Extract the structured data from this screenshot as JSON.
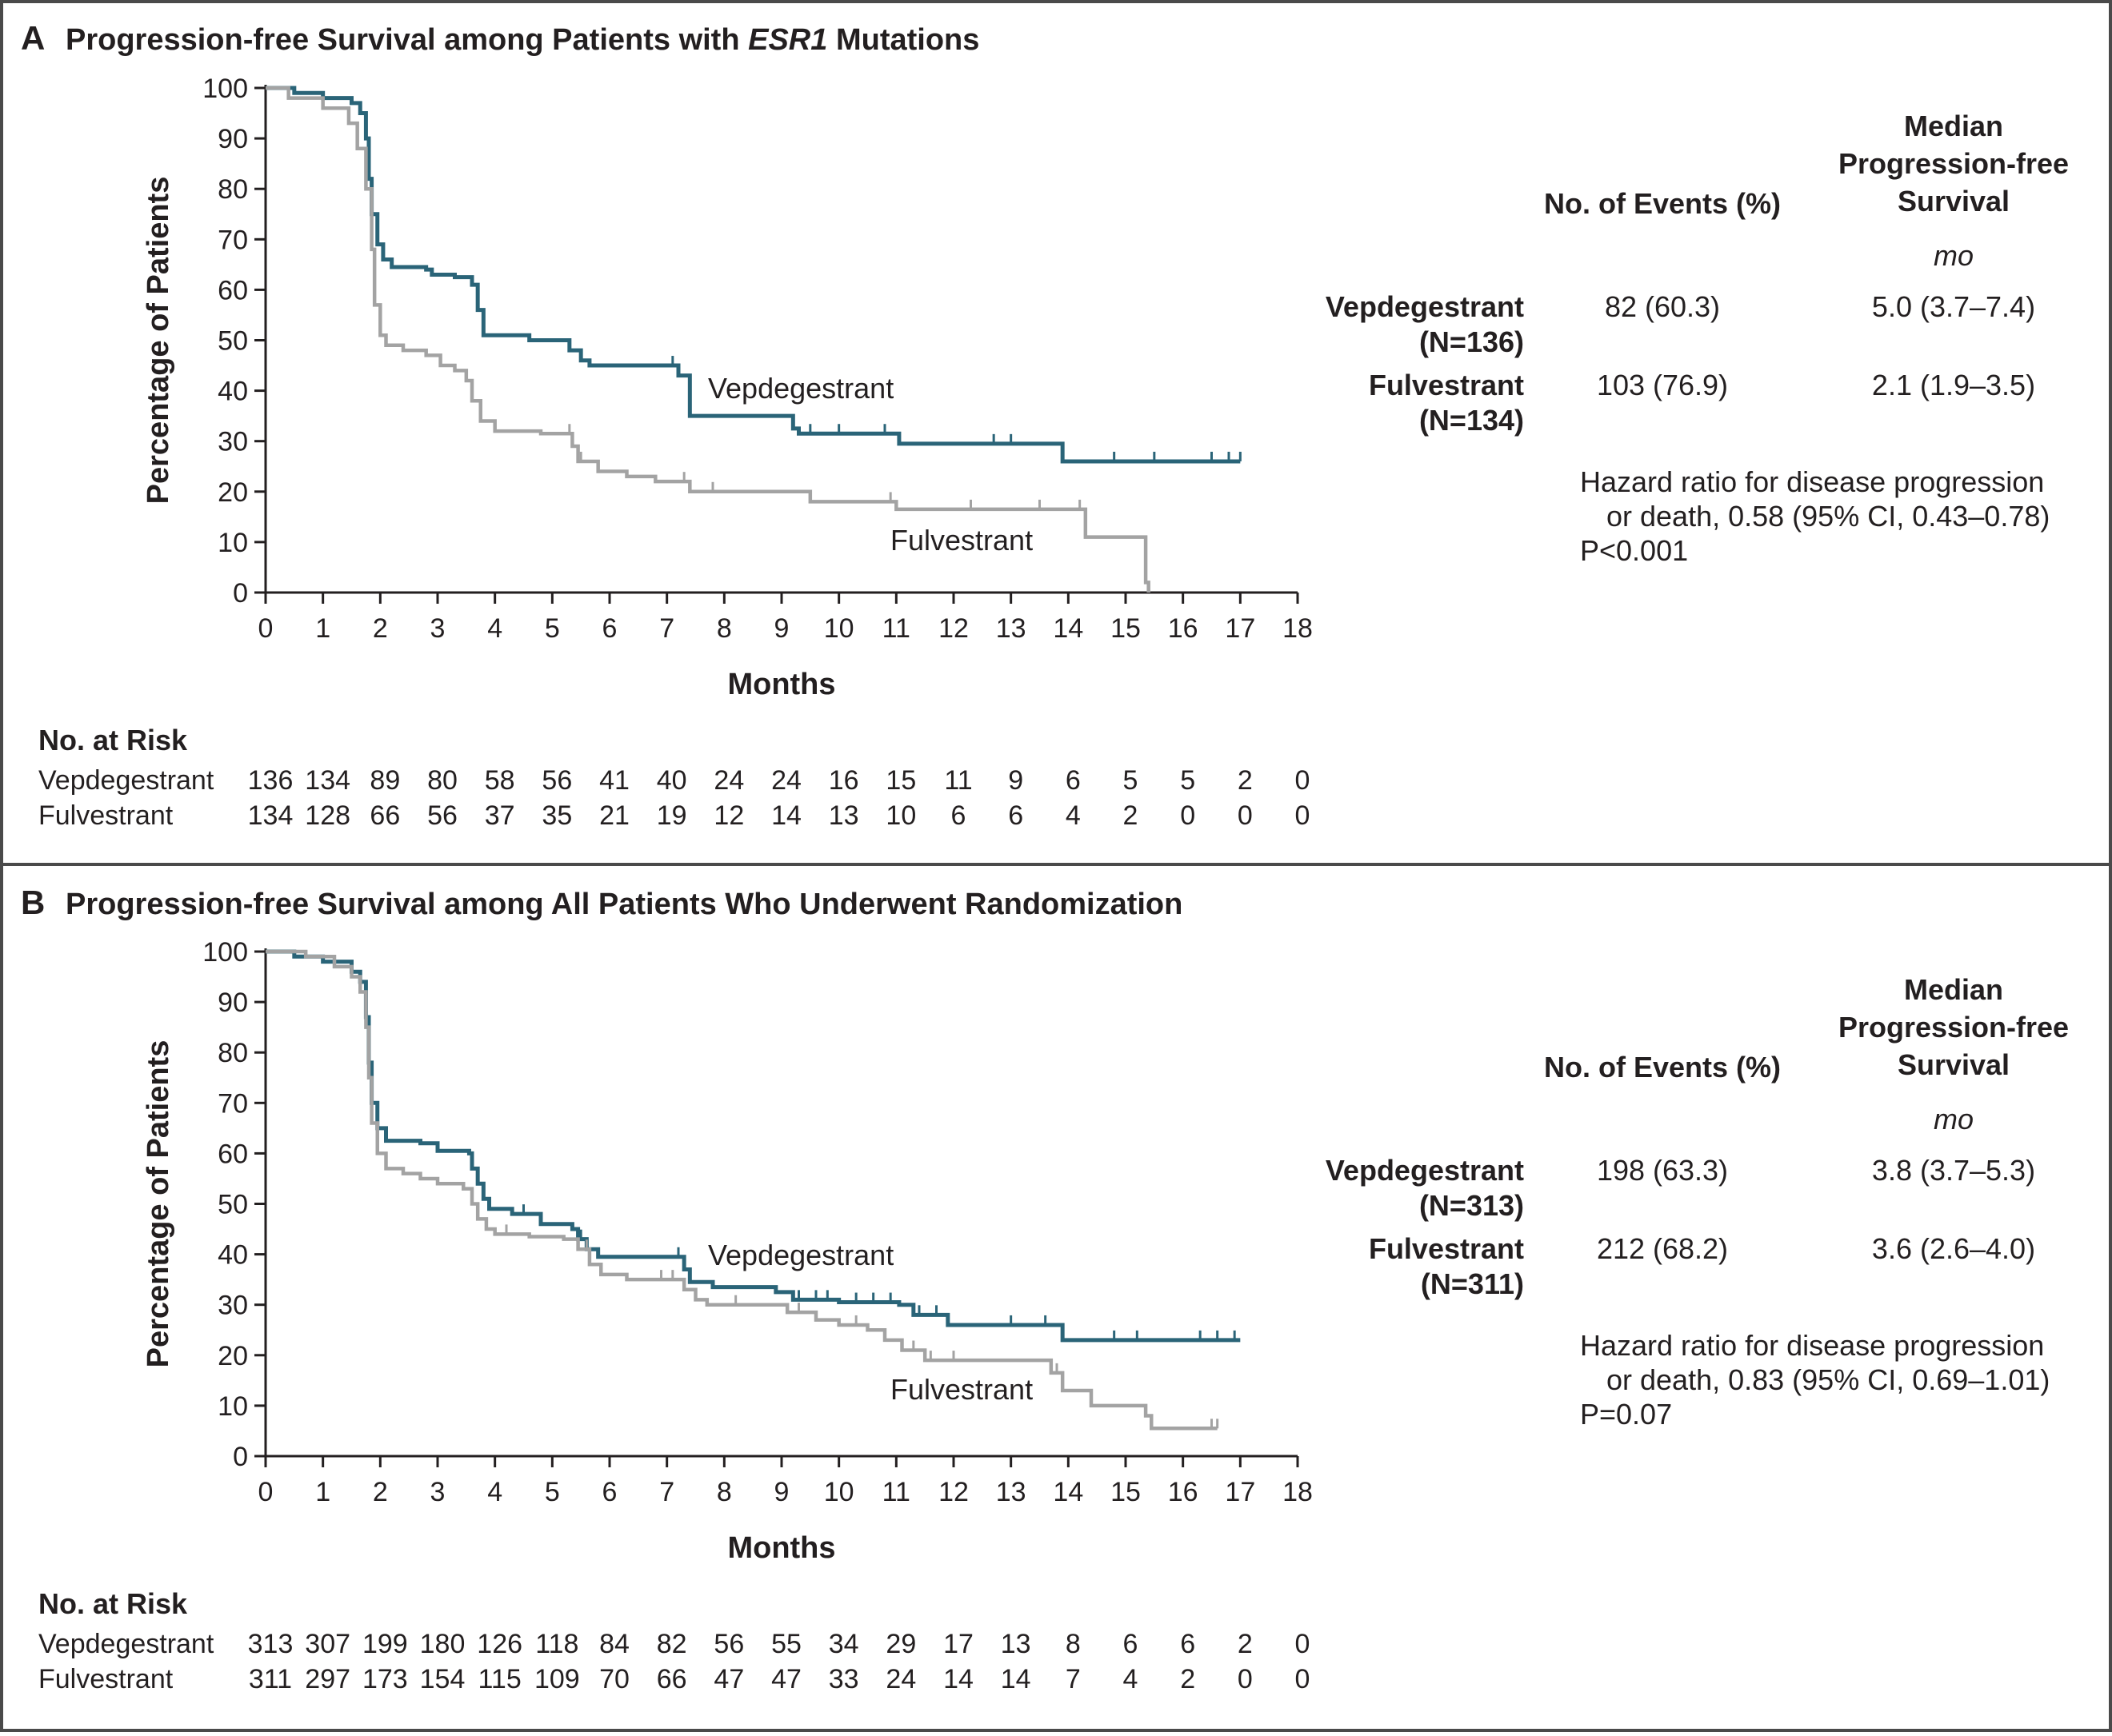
{
  "colors": {
    "vepdegestrant": "#2a6478",
    "fulvestrant": "#a3a3a3",
    "text": "#231f20",
    "frame": "#4a4a4a"
  },
  "chart_data": [
    {
      "type": "line",
      "panel_letter": "A",
      "title_prefix": "Progression-free Survival among Patients with ",
      "title_gene": "ESR1",
      "title_suffix": " Mutations",
      "xlabel": "Months",
      "ylabel": "Percentage of Patients",
      "xlim": [
        0,
        18
      ],
      "ylim": [
        0,
        100
      ],
      "xticks": [
        "0",
        "1",
        "2",
        "3",
        "4",
        "5",
        "6",
        "7",
        "8",
        "9",
        "10",
        "11",
        "12",
        "13",
        "14",
        "15",
        "16",
        "17",
        "18"
      ],
      "yticks": [
        "0",
        "10",
        "20",
        "30",
        "40",
        "50",
        "60",
        "70",
        "80",
        "90",
        "100"
      ],
      "series": [
        {
          "name": "Vepdegestrant",
          "color": "#2a6478",
          "points": [
            [
              0,
              100
            ],
            [
              0.5,
              99
            ],
            [
              1,
              98
            ],
            [
              1.5,
              97
            ],
            [
              1.65,
              95
            ],
            [
              1.75,
              90
            ],
            [
              1.8,
              82
            ],
            [
              1.85,
              75
            ],
            [
              1.95,
              69
            ],
            [
              2.05,
              66
            ],
            [
              2.2,
              64.5
            ],
            [
              2.8,
              64
            ],
            [
              2.9,
              63
            ],
            [
              3.3,
              62.5
            ],
            [
              3.6,
              61
            ],
            [
              3.7,
              56
            ],
            [
              3.8,
              51
            ],
            [
              4.2,
              51
            ],
            [
              4.6,
              50
            ],
            [
              5.3,
              48
            ],
            [
              5.5,
              46
            ],
            [
              5.65,
              45
            ],
            [
              6.2,
              45
            ],
            [
              7.2,
              43
            ],
            [
              7.4,
              35
            ],
            [
              8.4,
              35
            ],
            [
              9.2,
              32.5
            ],
            [
              9.3,
              31.5
            ],
            [
              10.5,
              31.5
            ],
            [
              11.05,
              29.5
            ],
            [
              13.9,
              26
            ],
            [
              17,
              26
            ]
          ],
          "censor": [
            7.1,
            7.2,
            9.2,
            9.5,
            10,
            10.8,
            12.7,
            13,
            14.8,
            15.5,
            16.5,
            16.8,
            17
          ]
        },
        {
          "name": "Fulvestrant",
          "color": "#a3a3a3",
          "points": [
            [
              0,
              100
            ],
            [
              0.4,
              98
            ],
            [
              1,
              96
            ],
            [
              1.45,
              93
            ],
            [
              1.6,
              88
            ],
            [
              1.75,
              80
            ],
            [
              1.85,
              68
            ],
            [
              1.9,
              57
            ],
            [
              2,
              51
            ],
            [
              2.1,
              49
            ],
            [
              2.4,
              48
            ],
            [
              2.8,
              47
            ],
            [
              3.05,
              45
            ],
            [
              3.3,
              44
            ],
            [
              3.5,
              42
            ],
            [
              3.6,
              38
            ],
            [
              3.75,
              34
            ],
            [
              4,
              32
            ],
            [
              4.8,
              31.5
            ],
            [
              5.35,
              29
            ],
            [
              5.45,
              26
            ],
            [
              5.8,
              24
            ],
            [
              6.3,
              23
            ],
            [
              6.8,
              22
            ],
            [
              7.4,
              20
            ],
            [
              9.4,
              20
            ],
            [
              9.5,
              18
            ],
            [
              10.9,
              18
            ],
            [
              11,
              16.5
            ],
            [
              14.2,
              16.5
            ],
            [
              14.3,
              11
            ],
            [
              15.3,
              11
            ],
            [
              15.35,
              2
            ],
            [
              15.4,
              0
            ]
          ],
          "censor": [
            5.3,
            5.5,
            7.3,
            7.8,
            10.9,
            12.3,
            13.5,
            14.2
          ]
        }
      ],
      "curve_labels": {
        "vepdegestrant": "Vepdegestrant",
        "fulvestrant": "Fulvestrant"
      },
      "at_risk_title": "No. at Risk",
      "at_risk": [
        {
          "label": "Vepdegestrant",
          "values": [
            "136",
            "134",
            "89",
            "80",
            "58",
            "56",
            "41",
            "40",
            "24",
            "24",
            "16",
            "15",
            "11",
            "9",
            "6",
            "5",
            "5",
            "2",
            "0"
          ]
        },
        {
          "label": "Fulvestrant",
          "values": [
            "134",
            "128",
            "66",
            "56",
            "37",
            "35",
            "21",
            "19",
            "12",
            "14",
            "13",
            "10",
            "6",
            "6",
            "4",
            "2",
            "0",
            "0",
            "0"
          ]
        }
      ],
      "table": {
        "col_events": "No. of Events (%)",
        "col_median": [
          "Median",
          "Progression-free",
          "Survival"
        ],
        "unit": "mo",
        "rows": [
          {
            "name": "Vepdegestrant",
            "n": "(N=136)",
            "events": "82 (60.3)",
            "median": "5.0 (3.7–7.4)"
          },
          {
            "name": "Fulvestrant",
            "n": "(N=134)",
            "events": "103 (76.9)",
            "median": "2.1 (1.9–3.5)"
          }
        ],
        "hr_lines": [
          "Hazard ratio for disease progression",
          "or death, 0.58 (95% CI, 0.43–0.78)",
          "P<0.001"
        ]
      }
    },
    {
      "type": "line",
      "panel_letter": "B",
      "title_prefix": "Progression-free Survival among All Patients Who Underwent Randomization",
      "title_gene": "",
      "title_suffix": "",
      "xlabel": "Months",
      "ylabel": "Percentage of Patients",
      "xlim": [
        0,
        18
      ],
      "ylim": [
        0,
        100
      ],
      "xticks": [
        "0",
        "1",
        "2",
        "3",
        "4",
        "5",
        "6",
        "7",
        "8",
        "9",
        "10",
        "11",
        "12",
        "13",
        "14",
        "15",
        "16",
        "17",
        "18"
      ],
      "yticks": [
        "0",
        "10",
        "20",
        "30",
        "40",
        "50",
        "60",
        "70",
        "80",
        "90",
        "100"
      ],
      "series": [
        {
          "name": "Vepdegestrant",
          "color": "#2a6478",
          "points": [
            [
              0,
              100
            ],
            [
              0.5,
              99
            ],
            [
              1,
              98
            ],
            [
              1.5,
              96
            ],
            [
              1.65,
              94
            ],
            [
              1.75,
              87
            ],
            [
              1.8,
              78
            ],
            [
              1.85,
              70
            ],
            [
              1.95,
              65
            ],
            [
              2.1,
              62.5
            ],
            [
              2.7,
              62
            ],
            [
              3,
              60.5
            ],
            [
              3.55,
              60
            ],
            [
              3.6,
              57
            ],
            [
              3.7,
              54
            ],
            [
              3.8,
              51
            ],
            [
              3.9,
              49
            ],
            [
              4.3,
              48
            ],
            [
              4.8,
              46
            ],
            [
              5.35,
              45
            ],
            [
              5.45,
              43
            ],
            [
              5.6,
              41
            ],
            [
              5.8,
              39.5
            ],
            [
              7.2,
              39.5
            ],
            [
              7.3,
              37
            ],
            [
              7.4,
              34.5
            ],
            [
              7.8,
              33.5
            ],
            [
              8.9,
              32.5
            ],
            [
              9.2,
              31
            ],
            [
              10,
              30.5
            ],
            [
              11.05,
              30
            ],
            [
              11.3,
              28
            ],
            [
              11.9,
              26
            ],
            [
              13.9,
              23
            ],
            [
              17,
              23
            ]
          ],
          "censor": [
            4.5,
            5.5,
            7.2,
            9.3,
            9.6,
            9.8,
            10.3,
            10.6,
            10.9,
            11.4,
            11.7,
            13.0,
            13.6,
            14.8,
            15.2,
            16.3,
            16.6,
            16.9
          ]
        },
        {
          "name": "Fulvestrant",
          "color": "#a3a3a3",
          "points": [
            [
              0,
              100
            ],
            [
              0.7,
              99
            ],
            [
              1.2,
              97
            ],
            [
              1.5,
              95
            ],
            [
              1.65,
              92
            ],
            [
              1.75,
              85
            ],
            [
              1.8,
              75
            ],
            [
              1.85,
              66
            ],
            [
              1.95,
              60
            ],
            [
              2.1,
              57
            ],
            [
              2.4,
              56
            ],
            [
              2.7,
              55
            ],
            [
              3,
              54
            ],
            [
              3.45,
              53
            ],
            [
              3.6,
              50
            ],
            [
              3.7,
              47
            ],
            [
              3.85,
              45
            ],
            [
              4,
              44
            ],
            [
              4.6,
              43.5
            ],
            [
              5.2,
              43
            ],
            [
              5.45,
              41
            ],
            [
              5.65,
              38
            ],
            [
              5.85,
              36
            ],
            [
              6.3,
              35
            ],
            [
              7.3,
              33
            ],
            [
              7.5,
              31
            ],
            [
              7.7,
              30
            ],
            [
              8.7,
              30
            ],
            [
              9.1,
              28.5
            ],
            [
              9.6,
              27
            ],
            [
              10,
              26
            ],
            [
              10.5,
              25
            ],
            [
              10.8,
              23
            ],
            [
              11.1,
              21
            ],
            [
              11.5,
              19
            ],
            [
              13.6,
              19
            ],
            [
              13.7,
              16.5
            ],
            [
              13.9,
              13
            ],
            [
              14.3,
              13
            ],
            [
              14.4,
              10
            ],
            [
              15.3,
              10
            ],
            [
              15.35,
              8
            ],
            [
              15.45,
              5.5
            ],
            [
              16.6,
              5.5
            ]
          ],
          "censor": [
            4.2,
            5.6,
            6.9,
            7.1,
            8.2,
            9.3,
            10.3,
            11.3,
            11.6,
            12.0,
            13.8,
            16.5,
            16.6
          ]
        }
      ],
      "curve_labels": {
        "vepdegestrant": "Vepdegestrant",
        "fulvestrant": "Fulvestrant"
      },
      "at_risk_title": "No. at Risk",
      "at_risk": [
        {
          "label": "Vepdegestrant",
          "values": [
            "313",
            "307",
            "199",
            "180",
            "126",
            "118",
            "84",
            "82",
            "56",
            "55",
            "34",
            "29",
            "17",
            "13",
            "8",
            "6",
            "6",
            "2",
            "0"
          ]
        },
        {
          "label": "Fulvestrant",
          "values": [
            "311",
            "297",
            "173",
            "154",
            "115",
            "109",
            "70",
            "66",
            "47",
            "47",
            "33",
            "24",
            "14",
            "14",
            "7",
            "4",
            "2",
            "0",
            "0"
          ]
        }
      ],
      "table": {
        "col_events": "No. of Events (%)",
        "col_median": [
          "Median",
          "Progression-free",
          "Survival"
        ],
        "unit": "mo",
        "rows": [
          {
            "name": "Vepdegestrant",
            "n": "(N=313)",
            "events": "198 (63.3)",
            "median": "3.8 (3.7–5.3)"
          },
          {
            "name": "Fulvestrant",
            "n": "(N=311)",
            "events": "212 (68.2)",
            "median": "3.6 (2.6–4.0)"
          }
        ],
        "hr_lines": [
          "Hazard ratio for disease progression",
          "or death, 0.83 (95% CI, 0.69–1.01)",
          "P=0.07"
        ]
      }
    }
  ]
}
